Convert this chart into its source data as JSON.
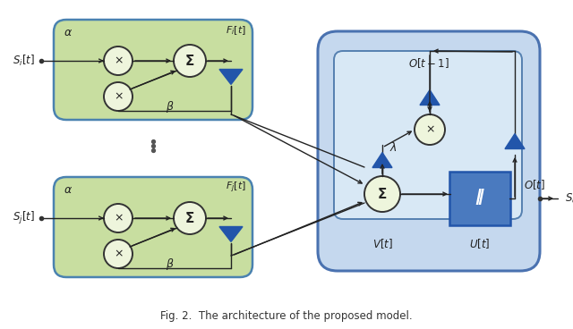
{
  "fig_width": 6.4,
  "fig_height": 3.68,
  "dpi": 100,
  "bg_color": "#ffffff",
  "green_box_color": "#c8dea0",
  "green_border_color": "#4a82b0",
  "blue_box_color": "#c5d8ee",
  "blue_border_color": "#4a72b0",
  "inner_box_color": "#d8e8f5",
  "inner_border_color": "#5580b0",
  "circle_fill": "#eef5dc",
  "circle_edge": "#333333",
  "arrow_blue": "#2255aa",
  "text_color": "#111111",
  "caption": "Fig. 2.  The architecture of the proposed model.",
  "int_box_color": "#4a7abf",
  "int_box_border": "#2255aa"
}
